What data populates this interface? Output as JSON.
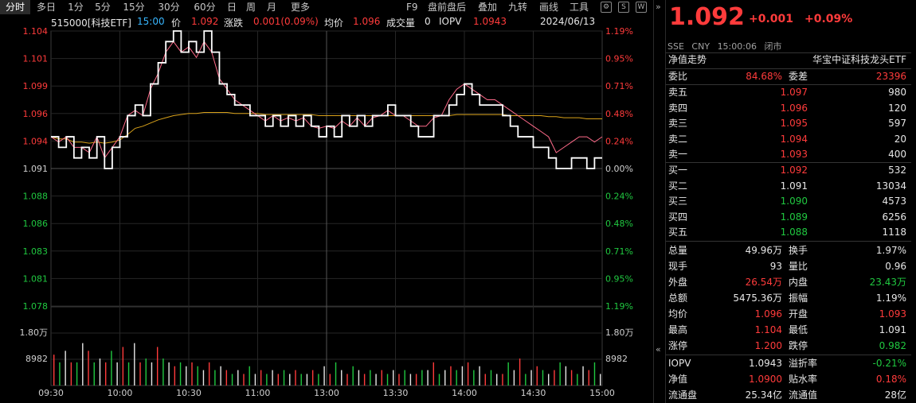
{
  "toolbar": {
    "tabs": [
      "分时",
      "多日",
      "1分",
      "5分",
      "15分",
      "30分",
      "日",
      "周",
      "月",
      "更多"
    ],
    "right": [
      "F9",
      "盘前盘后",
      "叠加",
      "九转",
      "画线",
      "工具"
    ]
  },
  "header": {
    "code": "515000[科技ETF]",
    "time": "15:00",
    "price_label": "价",
    "price": "1.092",
    "change_label": "涨跌",
    "change": "0.001(0.09%)",
    "avg_label": "均价",
    "avg": "1.096",
    "vol_label": "成交量",
    "vol": "0",
    "iopv_label": "IOPV",
    "iopv": "1.0943",
    "date": "2024/06/13"
  },
  "chart_data": {
    "type": "line",
    "price_axis": [
      "1.104",
      "1.101",
      "1.099",
      "1.096",
      "1.094",
      "1.091",
      "1.088",
      "1.086",
      "1.083",
      "1.081",
      "1.078"
    ],
    "pct_axis": [
      "1.19%",
      "0.95%",
      "0.71%",
      "0.48%",
      "0.24%",
      "0.00%",
      "0.24%",
      "0.48%",
      "0.71%",
      "0.95%",
      "1.19%"
    ],
    "ylim": [
      1.078,
      1.104
    ],
    "prev_close": 1.091,
    "volume_axis": [
      "1.80万",
      "8982"
    ],
    "time_axis": [
      "09:30",
      "10:00",
      "10:30",
      "11:00",
      "13:00",
      "13:30",
      "14:00",
      "14:30",
      "15:00"
    ],
    "series": [
      {
        "values": [
          1.094,
          1.093,
          1.094,
          1.092,
          1.093,
          1.092,
          1.094,
          1.091,
          1.093,
          1.094,
          1.096,
          1.097,
          1.096,
          1.099,
          1.101,
          1.103,
          1.104,
          1.102,
          1.103,
          1.102,
          1.104,
          1.102,
          1.099,
          1.098,
          1.097,
          1.097,
          1.096,
          1.096,
          1.095,
          1.096,
          1.095,
          1.096,
          1.095,
          1.096,
          1.095,
          1.094,
          1.095,
          1.094,
          1.096,
          1.095,
          1.096,
          1.095,
          1.096,
          1.096,
          1.097,
          1.096,
          1.096,
          1.095,
          1.094,
          1.094,
          1.096,
          1.096,
          1.097,
          1.098,
          1.099,
          1.098,
          1.097,
          1.097,
          1.097,
          1.096,
          1.095,
          1.094,
          1.094,
          1.093,
          1.093,
          1.092,
          1.091,
          1.091,
          1.092,
          1.092,
          1.091,
          1.092,
          1.092
        ]
      },
      {
        "values": [
          1.094,
          1.0938,
          1.0938,
          1.0935,
          1.0935,
          1.0934,
          1.0935,
          1.0934,
          1.0935,
          1.0937,
          1.0942,
          1.0948,
          1.095,
          1.0953,
          1.0956,
          1.0958,
          1.096,
          1.0961,
          1.0962,
          1.0962,
          1.0963,
          1.0963,
          1.0963,
          1.0963,
          1.0962,
          1.0962,
          1.0962,
          1.0962,
          1.0961,
          1.0961,
          1.0961,
          1.0961,
          1.0961,
          1.0961,
          1.0961,
          1.096,
          1.096,
          1.096,
          1.096,
          1.096,
          1.096,
          1.096,
          1.096,
          1.096,
          1.096,
          1.096,
          1.096,
          1.096,
          1.096,
          1.096,
          1.096,
          1.096,
          1.096,
          1.0961,
          1.0961,
          1.0961,
          1.0961,
          1.0961,
          1.0961,
          1.0961,
          1.096,
          1.096,
          1.096,
          1.096,
          1.096,
          1.0959,
          1.0959,
          1.0958,
          1.0958,
          1.0958,
          1.0957,
          1.0957,
          1.0957
        ]
      },
      {
        "values": [
          1.094,
          1.0935,
          1.094,
          1.093,
          1.093,
          1.0925,
          1.094,
          1.092,
          1.093,
          1.094,
          1.096,
          1.0965,
          1.096,
          1.0985,
          1.1,
          1.102,
          1.103,
          1.102,
          1.1025,
          1.1015,
          1.103,
          1.102,
          1.0995,
          1.0985,
          1.0975,
          1.097,
          1.0965,
          1.096,
          1.0955,
          1.096,
          1.0955,
          1.0958,
          1.0955,
          1.0958,
          1.095,
          1.0948,
          1.095,
          1.0948,
          1.0955,
          1.095,
          1.0958,
          1.095,
          1.0958,
          1.096,
          1.0965,
          1.096,
          1.096,
          1.0955,
          1.095,
          1.095,
          1.0958,
          1.096,
          1.0975,
          1.0985,
          1.099,
          1.0985,
          1.098,
          1.0975,
          1.0975,
          1.097,
          1.0965,
          1.096,
          1.0955,
          1.095,
          1.0945,
          1.094,
          1.0925,
          1.093,
          1.0935,
          1.094,
          1.094,
          1.0935,
          1.094
        ]
      }
    ],
    "volume": [
      0.4,
      0.3,
      0.45,
      0.3,
      0.3,
      0.55,
      0.45,
      0.3,
      0.35,
      0.3,
      0.45,
      0.3,
      0.5,
      0.3,
      0.55,
      0.3,
      0.35,
      0.3,
      0.5,
      0.35,
      0.3,
      0.25,
      0.3,
      0.25,
      0.3,
      0.25,
      0.2,
      0.3,
      0.2,
      0.25,
      0.2,
      0.15,
      0.2,
      0.15,
      0.25,
      0.15,
      0.2,
      0.15,
      0.2,
      0.15,
      0.2,
      0.15,
      0.2,
      0.15,
      0.15,
      0.2,
      0.15,
      0.25,
      0.15,
      0.3,
      0.2,
      0.15,
      0.25,
      0.2,
      0.15,
      0.2,
      0.15,
      0.2,
      0.15,
      0.2,
      0.15,
      0.2,
      0.15,
      0.15,
      0.2,
      0.2,
      0.3,
      0.15,
      0.2,
      0.25,
      0.2,
      0.25,
      0.3,
      0.2,
      0.25,
      0.15,
      0.2,
      0.15,
      0.15,
      0.3,
      0.2,
      0.35,
      0.15,
      0.2,
      0.25,
      0.2,
      0.15,
      0.2,
      0.3,
      0.25,
      0.2,
      0.15,
      0.25,
      0.2,
      0.3,
      0.15
    ]
  },
  "quote": {
    "price": "1.092",
    "change": "+0.001",
    "change_pct": "+0.09%",
    "exchange": "SSE",
    "currency": "CNY",
    "time": "15:00:06",
    "status": "闭市",
    "nav_trend": "净值走势",
    "index_name": "华宝中证科技龙头ETF",
    "wb_label": "委比",
    "wb": "84.68%",
    "wc_label": "委差",
    "wc": "23396",
    "asks": [
      {
        "label": "卖五",
        "price": "1.097",
        "vol": "980"
      },
      {
        "label": "卖四",
        "price": "1.096",
        "vol": "120"
      },
      {
        "label": "卖三",
        "price": "1.095",
        "vol": "597"
      },
      {
        "label": "卖二",
        "price": "1.094",
        "vol": "20"
      },
      {
        "label": "卖一",
        "price": "1.093",
        "vol": "400"
      }
    ],
    "bids": [
      {
        "label": "买一",
        "price": "1.092",
        "vol": "532"
      },
      {
        "label": "买二",
        "price": "1.091",
        "vol": "13034"
      },
      {
        "label": "买三",
        "price": "1.090",
        "vol": "4573"
      },
      {
        "label": "买四",
        "price": "1.089",
        "vol": "6256"
      },
      {
        "label": "买五",
        "price": "1.088",
        "vol": "1118"
      }
    ],
    "stats": [
      {
        "l1": "总量",
        "v1": "49.96万",
        "c1": "white",
        "l2": "换手",
        "v2": "1.97%",
        "c2": "white"
      },
      {
        "l1": "现手",
        "v1": "93",
        "c1": "white",
        "l2": "量比",
        "v2": "0.96",
        "c2": "white"
      },
      {
        "l1": "外盘",
        "v1": "26.54万",
        "c1": "red",
        "l2": "内盘",
        "v2": "23.43万",
        "c2": "green"
      },
      {
        "l1": "总额",
        "v1": "5475.36万",
        "c1": "white",
        "l2": "振幅",
        "v2": "1.19%",
        "c2": "white"
      },
      {
        "l1": "均价",
        "v1": "1.096",
        "c1": "red",
        "l2": "开盘",
        "v2": "1.093",
        "c2": "red"
      },
      {
        "l1": "最高",
        "v1": "1.104",
        "c1": "red",
        "l2": "最低",
        "v2": "1.091",
        "c2": "white"
      },
      {
        "l1": "涨停",
        "v1": "1.200",
        "c1": "red",
        "l2": "跌停",
        "v2": "0.982",
        "c2": "green"
      }
    ],
    "stats2": [
      {
        "l1": "IOPV",
        "v1": "1.0943",
        "c1": "white",
        "l2": "溢折率",
        "v2": "-0.21%",
        "c2": "green"
      },
      {
        "l1": "净值",
        "v1": "1.0900",
        "c1": "red",
        "l2": "贴水率",
        "v2": "0.18%",
        "c2": "red"
      },
      {
        "l1": "流通盘",
        "v1": "25.34亿",
        "c1": "white",
        "l2": "流通值",
        "v2": "28亿",
        "c2": "white"
      }
    ]
  }
}
